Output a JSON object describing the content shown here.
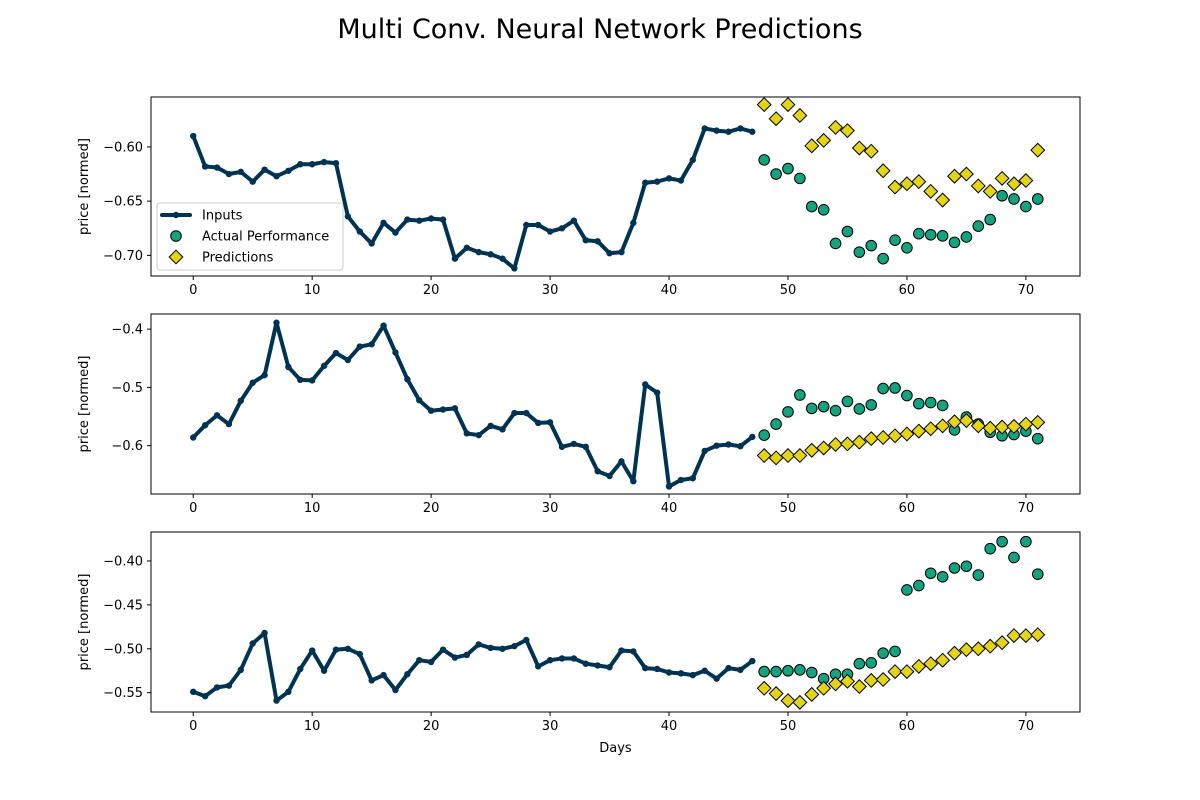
{
  "chart_data": {
    "type": "scatter",
    "title": "Multi Conv. Neural Network Predictions",
    "xlabel": "Days",
    "legend": {
      "placement": "center-left of first panel",
      "entries": [
        "Inputs",
        "Actual Performance",
        "Predictions"
      ]
    },
    "colors": {
      "inputs": "#003352",
      "actual": "#14a37f",
      "predictions": "#e3d416",
      "marker_edge": "#000000"
    },
    "xlim": [
      -3.55,
      74.55
    ],
    "xticks": [
      0,
      10,
      20,
      30,
      40,
      50,
      60,
      70
    ],
    "grid": false,
    "panels": [
      {
        "ylabel": "price [normed]",
        "ylim": [
          -0.719,
          -0.554
        ],
        "yticks": [
          -0.6,
          -0.65,
          -0.7
        ],
        "ytick_labels": [
          "−0.60",
          "−0.65",
          "−0.70"
        ],
        "series": [
          {
            "name": "Inputs",
            "x": [
              0,
              1,
              2,
              3,
              4,
              5,
              6,
              7,
              8,
              9,
              10,
              11,
              12,
              13,
              14,
              15,
              16,
              17,
              18,
              19,
              20,
              21,
              22,
              23,
              24,
              25,
              26,
              27,
              28,
              29,
              30,
              31,
              32,
              33,
              34,
              35,
              36,
              37,
              38,
              39,
              40,
              41,
              42,
              43,
              44,
              45,
              46,
              47
            ],
            "y": [
              -0.59,
              -0.618,
              -0.619,
              -0.625,
              -0.623,
              -0.632,
              -0.621,
              -0.627,
              -0.622,
              -0.616,
              -0.616,
              -0.614,
              -0.615,
              -0.664,
              -0.678,
              -0.689,
              -0.67,
              -0.679,
              -0.667,
              -0.668,
              -0.666,
              -0.667,
              -0.703,
              -0.693,
              -0.697,
              -0.699,
              -0.703,
              -0.712,
              -0.672,
              -0.672,
              -0.678,
              -0.675,
              -0.668,
              -0.686,
              -0.687,
              -0.698,
              -0.697,
              -0.67,
              -0.633,
              -0.632,
              -0.629,
              -0.631,
              -0.612,
              -0.583,
              -0.585,
              -0.586,
              -0.583,
              -0.586
            ]
          },
          {
            "name": "Actual Performance",
            "x": [
              48,
              49,
              50,
              51,
              52,
              53,
              54,
              55,
              56,
              57,
              58,
              59,
              60,
              61,
              62,
              63,
              64,
              65,
              66,
              67,
              68,
              69,
              70,
              71
            ],
            "y": [
              -0.612,
              -0.625,
              -0.62,
              -0.629,
              -0.655,
              -0.658,
              -0.689,
              -0.678,
              -0.697,
              -0.691,
              -0.703,
              -0.686,
              -0.693,
              -0.68,
              -0.681,
              -0.682,
              -0.688,
              -0.683,
              -0.673,
              -0.667,
              -0.645,
              -0.648,
              -0.655,
              -0.648
            ]
          },
          {
            "name": "Predictions",
            "x": [
              48,
              49,
              50,
              51,
              52,
              53,
              54,
              55,
              56,
              57,
              58,
              59,
              60,
              61,
              62,
              63,
              64,
              65,
              66,
              67,
              68,
              69,
              70,
              71
            ],
            "y": [
              -0.561,
              -0.574,
              -0.561,
              -0.571,
              -0.599,
              -0.594,
              -0.582,
              -0.585,
              -0.601,
              -0.604,
              -0.622,
              -0.637,
              -0.634,
              -0.632,
              -0.641,
              -0.649,
              -0.627,
              -0.625,
              -0.636,
              -0.641,
              -0.629,
              -0.634,
              -0.631,
              -0.603
            ]
          }
        ]
      },
      {
        "ylabel": "price [normed]",
        "ylim": [
          -0.683,
          -0.374
        ],
        "yticks": [
          -0.4,
          -0.5,
          -0.6
        ],
        "ytick_labels": [
          "−0.4",
          "−0.5",
          "−0.6"
        ],
        "series": [
          {
            "name": "Inputs",
            "x": [
              0,
              1,
              2,
              3,
              4,
              5,
              6,
              7,
              8,
              9,
              10,
              11,
              12,
              13,
              14,
              15,
              16,
              17,
              18,
              19,
              20,
              21,
              22,
              23,
              24,
              25,
              26,
              27,
              28,
              29,
              30,
              31,
              32,
              33,
              34,
              35,
              36,
              37,
              38,
              39,
              40,
              41,
              42,
              43,
              44,
              45,
              46,
              47
            ],
            "y": [
              -0.586,
              -0.565,
              -0.548,
              -0.563,
              -0.523,
              -0.492,
              -0.479,
              -0.389,
              -0.465,
              -0.487,
              -0.488,
              -0.463,
              -0.441,
              -0.453,
              -0.43,
              -0.426,
              -0.394,
              -0.44,
              -0.486,
              -0.522,
              -0.54,
              -0.538,
              -0.536,
              -0.579,
              -0.582,
              -0.566,
              -0.572,
              -0.544,
              -0.544,
              -0.561,
              -0.56,
              -0.602,
              -0.597,
              -0.602,
              -0.644,
              -0.652,
              -0.627,
              -0.661,
              -0.495,
              -0.509,
              -0.67,
              -0.659,
              -0.656,
              -0.609,
              -0.6,
              -0.598,
              -0.601,
              -0.585
            ]
          },
          {
            "name": "Actual Performance",
            "x": [
              48,
              49,
              50,
              51,
              52,
              53,
              54,
              55,
              56,
              57,
              58,
              59,
              60,
              61,
              62,
              63,
              64,
              65,
              66,
              67,
              68,
              69,
              70,
              71
            ],
            "y": [
              -0.582,
              -0.563,
              -0.542,
              -0.513,
              -0.536,
              -0.533,
              -0.54,
              -0.524,
              -0.537,
              -0.53,
              -0.502,
              -0.501,
              -0.514,
              -0.528,
              -0.526,
              -0.531,
              -0.573,
              -0.551,
              -0.563,
              -0.577,
              -0.583,
              -0.581,
              -0.575,
              -0.588
            ]
          },
          {
            "name": "Predictions",
            "x": [
              48,
              49,
              50,
              51,
              52,
              53,
              54,
              55,
              56,
              57,
              58,
              59,
              60,
              61,
              62,
              63,
              64,
              65,
              66,
              67,
              68,
              69,
              70,
              71
            ],
            "y": [
              -0.617,
              -0.621,
              -0.617,
              -0.617,
              -0.608,
              -0.604,
              -0.598,
              -0.597,
              -0.594,
              -0.588,
              -0.586,
              -0.583,
              -0.58,
              -0.575,
              -0.571,
              -0.566,
              -0.559,
              -0.557,
              -0.566,
              -0.57,
              -0.568,
              -0.567,
              -0.563,
              -0.56
            ]
          }
        ]
      },
      {
        "ylabel": "price [normed]",
        "ylim": [
          -0.572,
          -0.367
        ],
        "yticks": [
          -0.4,
          -0.45,
          -0.5,
          -0.55
        ],
        "ytick_labels": [
          "−0.40",
          "−0.45",
          "−0.50",
          "−0.55"
        ],
        "series": [
          {
            "name": "Inputs",
            "x": [
              0,
              1,
              2,
              3,
              4,
              5,
              6,
              7,
              8,
              9,
              10,
              11,
              12,
              13,
              14,
              15,
              16,
              17,
              18,
              19,
              20,
              21,
              22,
              23,
              24,
              25,
              26,
              27,
              28,
              29,
              30,
              31,
              32,
              33,
              34,
              35,
              36,
              37,
              38,
              39,
              40,
              41,
              42,
              43,
              44,
              45,
              46,
              47
            ],
            "y": [
              -0.549,
              -0.554,
              -0.544,
              -0.542,
              -0.524,
              -0.494,
              -0.482,
              -0.559,
              -0.549,
              -0.523,
              -0.502,
              -0.525,
              -0.501,
              -0.5,
              -0.506,
              -0.536,
              -0.53,
              -0.547,
              -0.529,
              -0.513,
              -0.515,
              -0.501,
              -0.51,
              -0.507,
              -0.495,
              -0.499,
              -0.5,
              -0.497,
              -0.49,
              -0.52,
              -0.513,
              -0.511,
              -0.511,
              -0.517,
              -0.519,
              -0.521,
              -0.502,
              -0.503,
              -0.522,
              -0.523,
              -0.527,
              -0.528,
              -0.53,
              -0.525,
              -0.534,
              -0.522,
              -0.524,
              -0.514
            ]
          },
          {
            "name": "Actual Performance",
            "x": [
              48,
              49,
              50,
              51,
              52,
              53,
              54,
              55,
              56,
              57,
              58,
              59,
              60,
              61,
              62,
              63,
              64,
              65,
              66,
              67,
              68,
              69,
              70,
              71
            ],
            "y": [
              -0.526,
              -0.526,
              -0.525,
              -0.524,
              -0.527,
              -0.534,
              -0.529,
              -0.529,
              -0.517,
              -0.516,
              -0.505,
              -0.503,
              -0.433,
              -0.428,
              -0.414,
              -0.418,
              -0.408,
              -0.406,
              -0.416,
              -0.386,
              -0.378,
              -0.396,
              -0.378,
              -0.415
            ]
          },
          {
            "name": "Predictions",
            "x": [
              48,
              49,
              50,
              51,
              52,
              53,
              54,
              55,
              56,
              57,
              58,
              59,
              60,
              61,
              62,
              63,
              64,
              65,
              66,
              67,
              68,
              69,
              70,
              71
            ],
            "y": [
              -0.545,
              -0.551,
              -0.559,
              -0.561,
              -0.552,
              -0.545,
              -0.54,
              -0.537,
              -0.543,
              -0.536,
              -0.535,
              -0.526,
              -0.526,
              -0.52,
              -0.517,
              -0.513,
              -0.505,
              -0.501,
              -0.5,
              -0.497,
              -0.493,
              -0.485,
              -0.485,
              -0.484
            ]
          }
        ]
      }
    ]
  }
}
